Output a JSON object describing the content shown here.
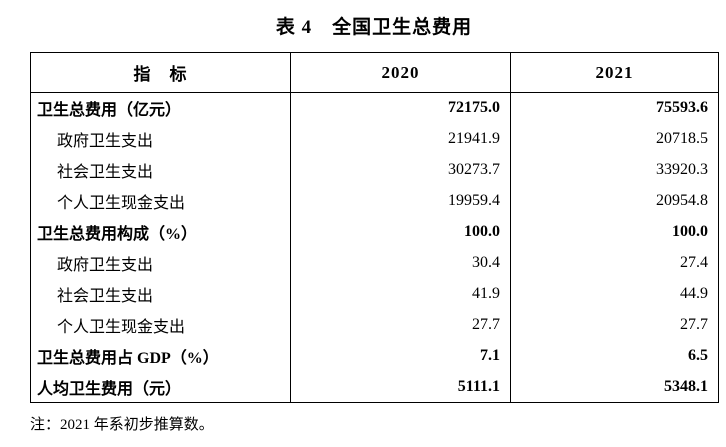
{
  "title": "表 4　全国卫生总费用",
  "table": {
    "headers": [
      "指　标",
      "2020",
      "2021"
    ],
    "rows": [
      {
        "label": "卫生总费用（亿元）",
        "values": [
          "72175.0",
          "75593.6"
        ],
        "bold": true,
        "indent": false
      },
      {
        "label": "政府卫生支出",
        "values": [
          "21941.9",
          "20718.5"
        ],
        "bold": false,
        "indent": true
      },
      {
        "label": "社会卫生支出",
        "values": [
          "30273.7",
          "33920.3"
        ],
        "bold": false,
        "indent": true
      },
      {
        "label": "个人卫生现金支出",
        "values": [
          "19959.4",
          "20954.8"
        ],
        "bold": false,
        "indent": true
      },
      {
        "label": "卫生总费用构成（%）",
        "values": [
          "100.0",
          "100.0"
        ],
        "bold": true,
        "indent": false
      },
      {
        "label": "政府卫生支出",
        "values": [
          "30.4",
          "27.4"
        ],
        "bold": false,
        "indent": true
      },
      {
        "label": "社会卫生支出",
        "values": [
          "41.9",
          "44.9"
        ],
        "bold": false,
        "indent": true
      },
      {
        "label": "个人卫生现金支出",
        "values": [
          "27.7",
          "27.7"
        ],
        "bold": false,
        "indent": true
      },
      {
        "label": "卫生总费用占 GDP（%）",
        "values": [
          "7.1",
          "6.5"
        ],
        "bold": true,
        "indent": false
      },
      {
        "label": "人均卫生费用（元）",
        "values": [
          "5111.1",
          "5348.1"
        ],
        "bold": true,
        "indent": false
      }
    ]
  },
  "note": "注：2021 年系初步推算数。"
}
